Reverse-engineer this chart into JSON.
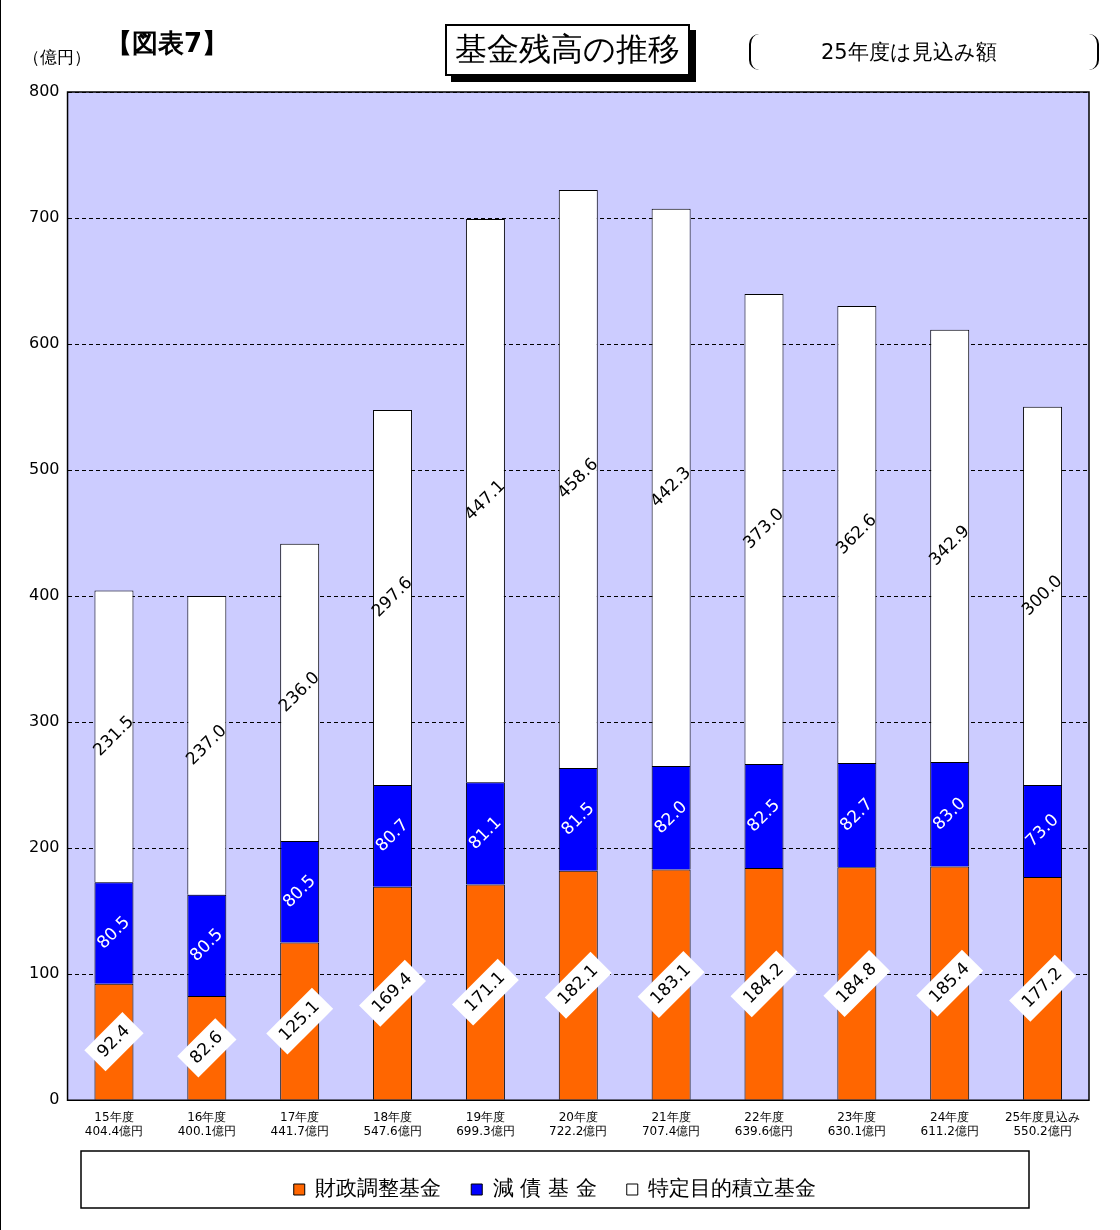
{
  "chart_data": {
    "type": "bar",
    "stacked": true,
    "title": "基金残高の推移",
    "subtitle": "25年度は見込み額",
    "ylabel": "（億円）",
    "annotations": [
      "【図表7】"
    ],
    "categories": [
      "15年度\n404.4億円",
      "16年度\n400.1億円",
      "17年度\n441.7億円",
      "18年度\n547.6億円",
      "19年度\n699.3億円",
      "20年度\n722.2億円",
      "21年度\n707.4億円",
      "22年度\n639.6億円",
      "23年度\n630.1億円",
      "24年度\n611.2億円",
      "25年度見込み\n550.2億円"
    ],
    "series": [
      {
        "name": "財政調整基金",
        "color": "#ff6600",
        "values": [
          92.4,
          82.6,
          125.1,
          169.4,
          171.1,
          182.1,
          183.1,
          184.2,
          184.8,
          185.4,
          177.2
        ],
        "value_labels": [
          "92.4",
          "82.6",
          "125.1",
          "169.4",
          "171.1",
          "182.1",
          "183.1",
          "184.2",
          "184.8",
          "185.4",
          "177.2"
        ]
      },
      {
        "name": "減 債 基 金",
        "color": "#0000ff",
        "values": [
          80.5,
          80.5,
          80.5,
          80.7,
          81.1,
          81.5,
          82.0,
          82.5,
          82.7,
          83.0,
          73.0
        ],
        "value_labels": [
          "80.5",
          "80.5",
          "80.5",
          "80.7",
          "81.1",
          "81.5",
          "82.0",
          "82.5",
          "82.7",
          "83.0",
          "73.0"
        ]
      },
      {
        "name": "特定目的積立基金",
        "color": "#ffffff",
        "values": [
          231.5,
          237.0,
          236.0,
          297.6,
          447.1,
          458.6,
          442.3,
          373.0,
          362.6,
          342.9,
          300.0
        ],
        "value_labels": [
          "231.5",
          "237.0",
          "236.0",
          "297.6",
          "447.1",
          "458.6",
          "442.3",
          "373.0",
          "362.6",
          "342.9",
          "300.0"
        ]
      }
    ],
    "ylim": [
      0,
      800
    ],
    "yticks": [
      0,
      100,
      200,
      300,
      400,
      500,
      600,
      700,
      800
    ],
    "grid": "y",
    "legend": "bottom"
  }
}
